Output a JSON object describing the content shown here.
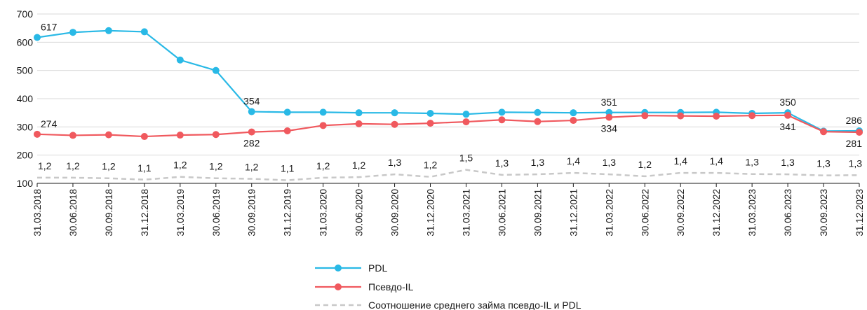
{
  "chart_data": {
    "type": "line",
    "title": "",
    "xlabel": "",
    "ylabel": "",
    "ylim": [
      100,
      700
    ],
    "yticks": [
      "100",
      "200",
      "300",
      "400",
      "500",
      "600",
      "700"
    ],
    "grid": "horizontal",
    "legend_position": "bottom",
    "categories": [
      "31.03.2018",
      "30.06.2018",
      "30.09.2018",
      "31.12.2018",
      "31.03.2019",
      "30.06.2019",
      "30.09.2019",
      "31.12.2019",
      "31.03.2020",
      "30.06.2020",
      "30.09.2020",
      "31.12.2020",
      "31.03.2021",
      "30.06.2021",
      "30.09.2021",
      "31.12.2021",
      "31.03.2022",
      "30.06.2022",
      "30.09.2022",
      "31.12.2022",
      "31.03.2023",
      "30.06.2023",
      "30.09.2023",
      "31.12.2023"
    ],
    "series": [
      {
        "name": "PDL",
        "color": "#29b9e6",
        "values": [
          617,
          635,
          641,
          637,
          537,
          500,
          354,
          352,
          352,
          350,
          350,
          348,
          345,
          352,
          351,
          350,
          351,
          351,
          351,
          352,
          348,
          350,
          285,
          286
        ],
        "labels": [
          {
            "index": 0,
            "text": "617",
            "position": "above"
          },
          {
            "index": 6,
            "text": "354",
            "position": "above"
          },
          {
            "index": 16,
            "text": "351",
            "position": "above"
          },
          {
            "index": 21,
            "text": "350",
            "position": "above"
          },
          {
            "index": 23,
            "text": "286",
            "position": "above"
          }
        ]
      },
      {
        "name": "Псевдо-IL",
        "color": "#f0595e",
        "values": [
          274,
          270,
          272,
          266,
          271,
          273,
          282,
          286,
          305,
          311,
          309,
          313,
          318,
          325,
          319,
          323,
          334,
          340,
          339,
          338,
          340,
          341,
          283,
          281
        ],
        "labels": [
          {
            "index": 0,
            "text": "274",
            "position": "above"
          },
          {
            "index": 6,
            "text": "282",
            "position": "below"
          },
          {
            "index": 16,
            "text": "334",
            "position": "below"
          },
          {
            "index": 21,
            "text": "341",
            "position": "below"
          },
          {
            "index": 23,
            "text": "281",
            "position": "below"
          }
        ]
      },
      {
        "name": "Соотношение среднего займа псевдо-IL и PDL",
        "color": "#c8c8c8",
        "dashed": true,
        "values": [
          120,
          120,
          118,
          113,
          123,
          118,
          116,
          111,
          120,
          122,
          132,
          123,
          148,
          130,
          132,
          137,
          132,
          125,
          137,
          137,
          133,
          132,
          128,
          129
        ],
        "point_labels": [
          "1,2",
          "1,2",
          "1,2",
          "1,1",
          "1,2",
          "1,2",
          "1,2",
          "1,1",
          "1,2",
          "1,2",
          "1,3",
          "1,2",
          "1,5",
          "1,3",
          "1,3",
          "1,4",
          "1,3",
          "1,2",
          "1,4",
          "1,4",
          "1,3",
          "1,3",
          "1,3",
          "1,3"
        ]
      }
    ]
  }
}
